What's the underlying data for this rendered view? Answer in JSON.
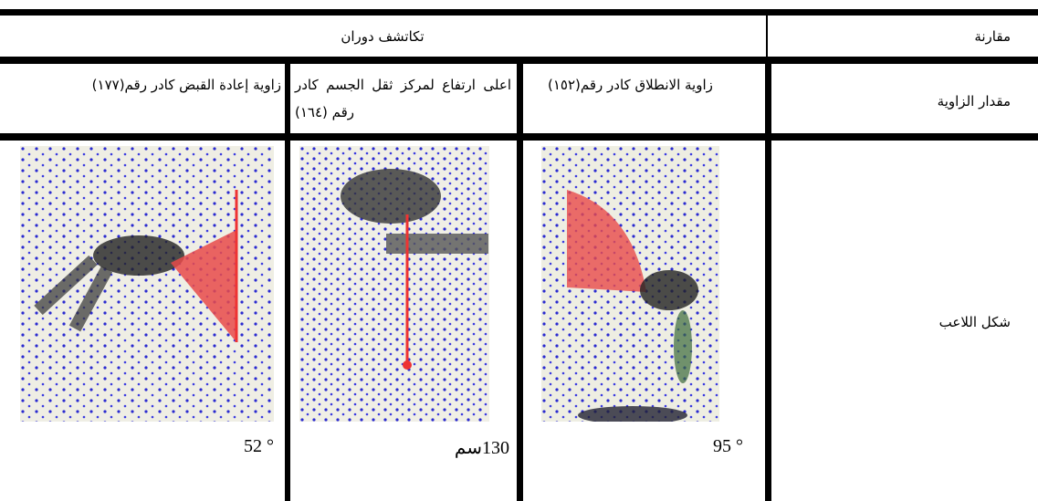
{
  "table": {
    "header": [
      "مقارنة",
      "تكاتشف دوران"
    ],
    "rows": [
      [
        "مقدار الزاوية",
        "زاوية الانطلاق كادر رقم(١٥٢)",
        "اعلى ارتفاع لمركز ثقل الجسم كادر رقم (١٦٤)",
        "زاوية إعادة القبض كادر رقم(١٧٧)"
      ],
      [
        "شكل اللاعب",
        "95 °",
        "130سم",
        "52 °"
      ]
    ]
  }
}
